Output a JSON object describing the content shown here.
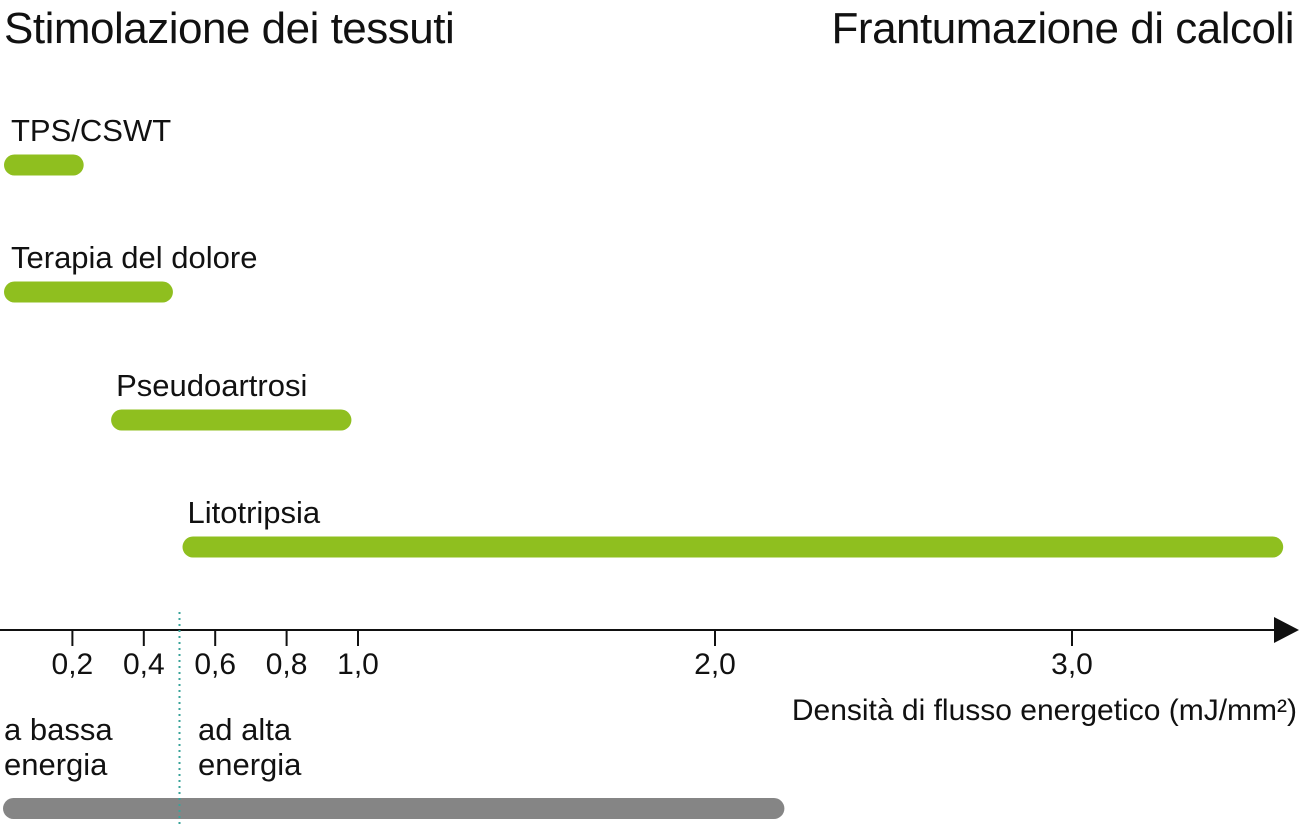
{
  "headings": {
    "left": "Stimolazione dei tessuti",
    "right": "Frantumazione di calcoli"
  },
  "chart_data": {
    "type": "bar",
    "orientation": "horizontal-range",
    "xlabel": "Densità di flusso energetico (mJ/mm²)",
    "ticks": [
      {
        "value": 0.2,
        "label": "0,2"
      },
      {
        "value": 0.4,
        "label": "0,4"
      },
      {
        "value": 0.6,
        "label": "0,6"
      },
      {
        "value": 0.8,
        "label": "0,8"
      },
      {
        "value": 1.0,
        "label": "1,0"
      },
      {
        "value": 2.0,
        "label": "2,0"
      },
      {
        "value": 3.0,
        "label": "3,0"
      }
    ],
    "xlim": [
      0,
      3.6
    ],
    "threshold": 0.5,
    "bars": [
      {
        "label": "TPS/CSWT",
        "start": 0.0,
        "end": 0.24
      },
      {
        "label": "Terapia del dolore",
        "start": 0.0,
        "end": 0.49
      },
      {
        "label": "Pseudoartrosi",
        "start": 0.3,
        "end": 0.99
      },
      {
        "label": "Litotripsia",
        "start": 0.5,
        "end": 3.6
      }
    ],
    "bands": {
      "low": {
        "lines": [
          "a bassa",
          "energia"
        ]
      },
      "high": {
        "lines": [
          "ad alta",
          "energia"
        ]
      },
      "range_bar": {
        "start": 0.0,
        "end": 2.2
      }
    },
    "colors": {
      "bar": "#8fbf1f",
      "range_bar": "#858585",
      "threshold_line": "#3aa39a",
      "axis": "#111111"
    },
    "grid": false,
    "legend": "none"
  }
}
